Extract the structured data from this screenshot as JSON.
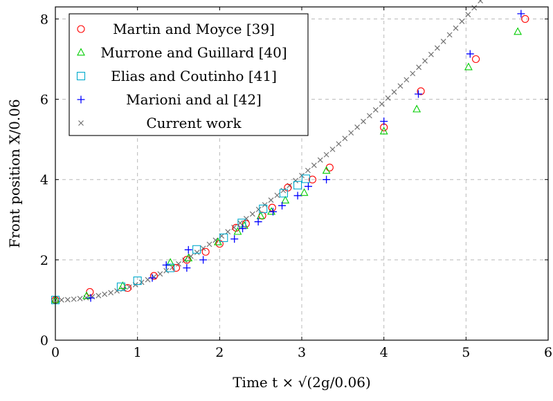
{
  "chart_data": {
    "type": "scatter",
    "xlabel": "Time t × √(2g/0.06)",
    "ylabel": "Front position X/0.06",
    "xlim": [
      0,
      6
    ],
    "ylim": [
      0,
      8.3
    ],
    "xticks": [
      0,
      1,
      2,
      3,
      4,
      5,
      6
    ],
    "yticks": [
      0,
      2,
      4,
      6,
      8
    ],
    "xtick_labels": [
      "0",
      "1",
      "2",
      "3",
      "4",
      "5",
      "6"
    ],
    "ytick_labels": [
      "0",
      "2",
      "4",
      "6",
      "8"
    ],
    "grid": true,
    "legend_position": "top-left",
    "series": [
      {
        "name": "Martin and Moyce [39]",
        "marker": "circle",
        "color": "#ff0000",
        "points": [
          [
            0,
            1.0
          ],
          [
            0.42,
            1.2
          ],
          [
            0.88,
            1.3
          ],
          [
            1.2,
            1.6
          ],
          [
            1.47,
            1.8
          ],
          [
            1.6,
            2.0
          ],
          [
            1.83,
            2.2
          ],
          [
            2.0,
            2.4
          ],
          [
            2.2,
            2.8
          ],
          [
            2.32,
            2.9
          ],
          [
            2.52,
            3.1
          ],
          [
            2.64,
            3.3
          ],
          [
            2.83,
            3.8
          ],
          [
            3.13,
            4.0
          ],
          [
            3.34,
            4.3
          ],
          [
            4.0,
            5.3
          ],
          [
            4.45,
            6.2
          ],
          [
            5.12,
            7.0
          ],
          [
            5.72,
            8.0
          ]
        ]
      },
      {
        "name": "Murrone and Guillard [40]",
        "marker": "triangle",
        "color": "#00cc00",
        "points": [
          [
            0.0,
            1.0
          ],
          [
            0.38,
            1.1
          ],
          [
            0.82,
            1.35
          ],
          [
            1.4,
            1.93
          ],
          [
            1.62,
            2.04
          ],
          [
            1.98,
            2.44
          ],
          [
            2.22,
            2.7
          ],
          [
            2.3,
            2.85
          ],
          [
            2.5,
            3.09
          ],
          [
            2.63,
            3.2
          ],
          [
            2.8,
            3.48
          ],
          [
            3.03,
            3.67
          ],
          [
            3.3,
            4.22
          ],
          [
            4.0,
            5.2
          ],
          [
            4.4,
            5.75
          ],
          [
            5.03,
            6.8
          ],
          [
            5.63,
            7.68
          ]
        ]
      },
      {
        "name": "Elias and Coutinho [41]",
        "marker": "square",
        "color": "#00aacc",
        "points": [
          [
            0,
            1.0
          ],
          [
            0.8,
            1.33
          ],
          [
            1.0,
            1.48
          ],
          [
            1.4,
            1.8
          ],
          [
            1.72,
            2.26
          ],
          [
            2.05,
            2.55
          ],
          [
            2.27,
            2.92
          ],
          [
            2.53,
            3.27
          ],
          [
            2.78,
            3.66
          ],
          [
            2.95,
            3.86
          ],
          [
            3.05,
            4.02
          ]
        ]
      },
      {
        "name": "Marioni and al [42]",
        "marker": "plus",
        "color": "#0000ff",
        "points": [
          [
            0.43,
            1.05
          ],
          [
            1.18,
            1.55
          ],
          [
            1.35,
            1.87
          ],
          [
            1.6,
            1.8
          ],
          [
            1.62,
            2.25
          ],
          [
            1.8,
            2.0
          ],
          [
            2.18,
            2.52
          ],
          [
            2.28,
            2.78
          ],
          [
            2.47,
            2.95
          ],
          [
            2.65,
            3.2
          ],
          [
            2.76,
            3.35
          ],
          [
            2.95,
            3.6
          ],
          [
            3.08,
            3.83
          ],
          [
            3.3,
            4.0
          ],
          [
            4.0,
            5.45
          ],
          [
            4.42,
            6.13
          ],
          [
            5.05,
            7.13
          ],
          [
            5.67,
            8.13
          ]
        ]
      },
      {
        "name": "Current work",
        "marker": "cross",
        "color": "#707070",
        "x_start": 0.0,
        "x_step": 0.075,
        "count": 78,
        "curve": "y = 1.0 + 0.65*x^2 for x < 1.6; continues smoothly to y ≈ 8.0 at x = 5.8"
      }
    ]
  }
}
